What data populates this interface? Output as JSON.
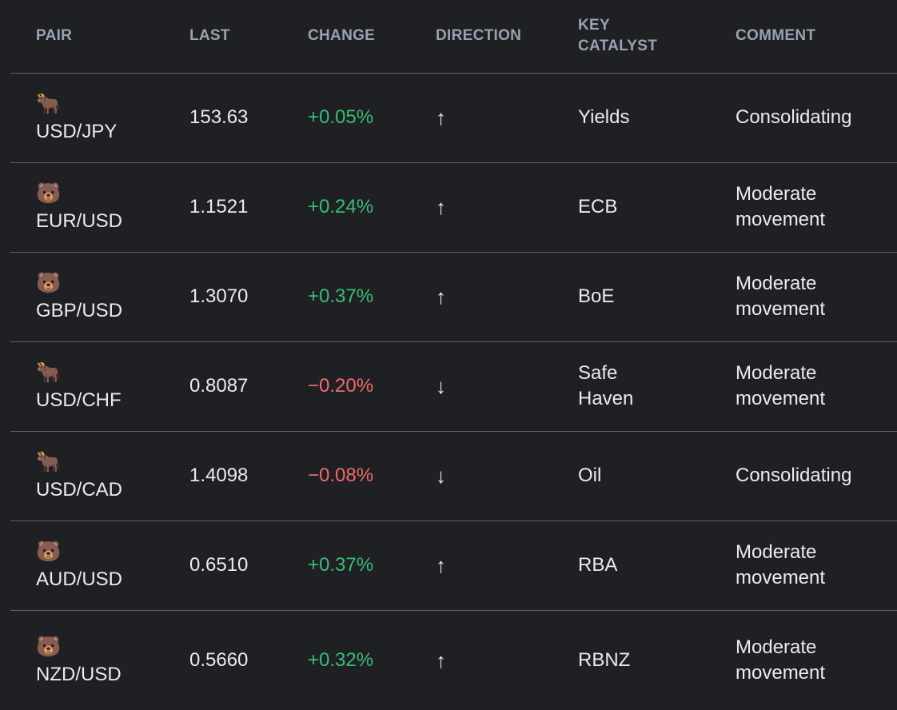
{
  "colors": {
    "background": "#1f2023",
    "body_text": "#e9ebee",
    "header_text": "#98a2b3",
    "positive_change": "#38bd78",
    "negative_change": "#f06a6a",
    "divider": "#5a6172"
  },
  "table": {
    "columns": {
      "pair": "PAIR",
      "last": "LAST",
      "change": "CHANGE",
      "direction": "DIRECTION",
      "catalyst": "KEY CATALYST",
      "comment": "COMMENT"
    },
    "rows": [
      {
        "emoji": "🐂",
        "emoji_meaning": "ox",
        "pair": "USD/JPY",
        "last": "153.63",
        "change": "+0.05%",
        "trend": "up",
        "direction": "↑",
        "catalyst": "Yields",
        "comment": "Consolidating"
      },
      {
        "emoji": "🐻",
        "emoji_meaning": "bear",
        "pair": "EUR/USD",
        "last": "1.1521",
        "change": "+0.24%",
        "trend": "up",
        "direction": "↑",
        "catalyst": "ECB",
        "comment": "Moderate movement"
      },
      {
        "emoji": "🐻",
        "emoji_meaning": "bear",
        "pair": "GBP/USD",
        "last": "1.3070",
        "change": "+0.37%",
        "trend": "up",
        "direction": "↑",
        "catalyst": "BoE",
        "comment": "Moderate movement"
      },
      {
        "emoji": "🐂",
        "emoji_meaning": "ox",
        "pair": "USD/CHF",
        "last": "0.8087",
        "change": "−0.20%",
        "trend": "down",
        "direction": "↓",
        "catalyst": "Safe Haven",
        "comment": "Moderate movement"
      },
      {
        "emoji": "🐂",
        "emoji_meaning": "ox",
        "pair": "USD/CAD",
        "last": "1.4098",
        "change": "−0.08%",
        "trend": "down",
        "direction": "↓",
        "catalyst": "Oil",
        "comment": "Consolidating"
      },
      {
        "emoji": "🐻",
        "emoji_meaning": "bear",
        "pair": "AUD/USD",
        "last": "0.6510",
        "change": "+0.37%",
        "trend": "up",
        "direction": "↑",
        "catalyst": "RBA",
        "comment": "Moderate movement"
      },
      {
        "emoji": "🐻",
        "emoji_meaning": "bear",
        "pair": "NZD/USD",
        "last": "0.5660",
        "change": "+0.32%",
        "trend": "up",
        "direction": "↑",
        "catalyst": "RBNZ",
        "comment": "Moderate movement"
      }
    ]
  }
}
